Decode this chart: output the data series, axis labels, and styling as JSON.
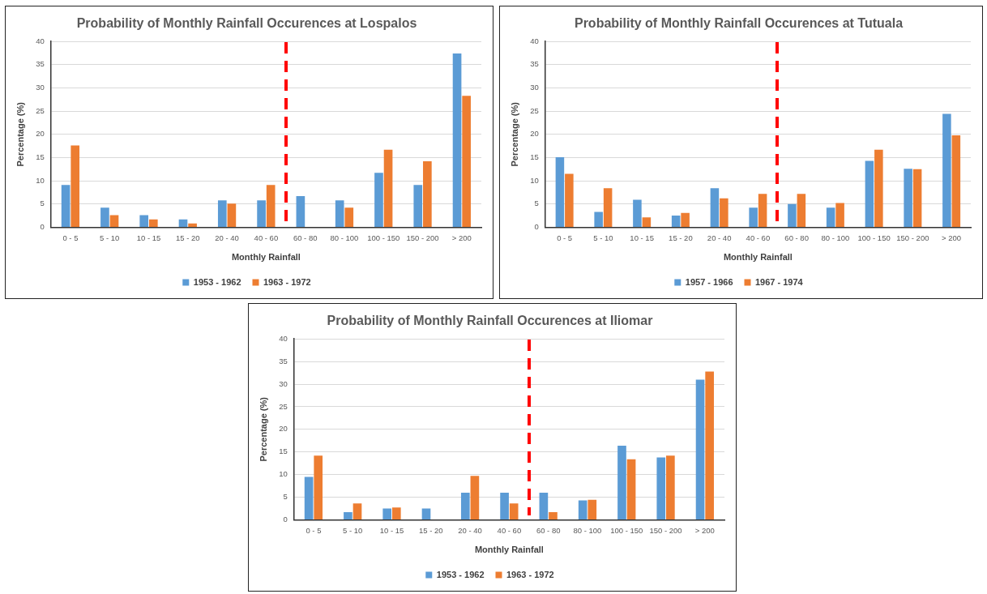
{
  "chart_data": [
    {
      "type": "bar",
      "title": "Probability of Monthly Rainfall Occurences at Lospalos",
      "xlabel": "Monthly Rainfall",
      "ylabel": "Percentage (%)",
      "categories": [
        "0 - 5",
        "5 - 10",
        "10 - 15",
        "15 - 20",
        "20 - 40",
        "40 - 60",
        "60 - 80",
        "80 - 100",
        "100 - 150",
        "150 - 200",
        "> 200"
      ],
      "series": [
        {
          "name": "1953 - 1962",
          "color": "#5b9bd5",
          "values": [
            9.1,
            4.2,
            2.6,
            1.7,
            5.8,
            5.8,
            6.7,
            5.8,
            11.7,
            9.1,
            37.4
          ]
        },
        {
          "name": "1963 - 1972",
          "color": "#ed7d31",
          "values": [
            17.6,
            2.6,
            1.7,
            0.8,
            5.1,
            9.1,
            0,
            4.2,
            16.7,
            14.2,
            28.3
          ]
        }
      ],
      "ylim": [
        0,
        40
      ],
      "yticks": [
        0,
        5,
        10,
        15,
        20,
        25,
        30,
        35,
        40
      ],
      "grid": "y",
      "legend": "bottom"
    },
    {
      "type": "bar",
      "title": "Probability of Monthly Rainfall Occurences at Tutuala",
      "xlabel": "Monthly Rainfall",
      "ylabel": "Percentage (%)",
      "categories": [
        "0 - 5",
        "5 - 10",
        "10 - 15",
        "15 - 20",
        "20 - 40",
        "40 - 60",
        "60 - 80",
        "80 - 100",
        "100 - 150",
        "150 - 200",
        "> 200"
      ],
      "series": [
        {
          "name": "1957 - 1966",
          "color": "#5b9bd5",
          "values": [
            15.1,
            3.3,
            5.9,
            2.5,
            8.4,
            4.2,
            5.0,
            4.2,
            14.3,
            12.6,
            24.4
          ]
        },
        {
          "name": "1967 - 1974",
          "color": "#ed7d31",
          "values": [
            11.5,
            8.4,
            2.1,
            3.1,
            6.2,
            7.2,
            7.2,
            5.2,
            16.7,
            12.5,
            19.8
          ]
        }
      ],
      "ylim": [
        0,
        40
      ],
      "yticks": [
        0,
        5,
        10,
        15,
        20,
        25,
        30,
        35,
        40
      ],
      "grid": "y",
      "legend": "bottom"
    },
    {
      "type": "bar",
      "title": "Probability of Monthly Rainfall Occurences at Iliomar",
      "xlabel": "Monthly Rainfall",
      "ylabel": "Percentage (%)",
      "categories": [
        "0 - 5",
        "5 - 10",
        "10 - 15",
        "15 - 20",
        "20 - 40",
        "40 - 60",
        "60 - 80",
        "80 - 100",
        "100 - 150",
        "150 - 200",
        "> 200"
      ],
      "series": [
        {
          "name": "1953 - 1962",
          "color": "#5b9bd5",
          "values": [
            9.5,
            1.7,
            2.5,
            2.5,
            6.0,
            6.0,
            6.0,
            4.3,
            16.4,
            13.8,
            31.0
          ]
        },
        {
          "name": "1963 - 1972",
          "color": "#ed7d31",
          "values": [
            14.2,
            3.6,
            2.7,
            0,
            9.7,
            3.6,
            1.7,
            4.4,
            13.4,
            14.2,
            32.8
          ]
        }
      ],
      "ylim": [
        0,
        40
      ],
      "yticks": [
        0,
        5,
        10,
        15,
        20,
        25,
        30,
        35,
        40
      ],
      "grid": "y",
      "legend": "bottom"
    }
  ]
}
